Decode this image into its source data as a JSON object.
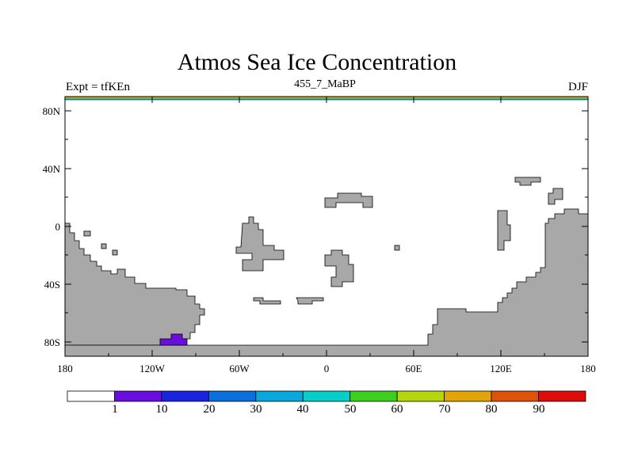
{
  "title": "Atmos Sea Ice Concentration",
  "subtitle_left": "Expt = tfKEn",
  "subtitle_center": "455_7_MaBP",
  "subtitle_right": "DJF",
  "lat_ticks": [
    "80N",
    "40N",
    "0",
    "40S",
    "80S"
  ],
  "lon_ticks": [
    "180",
    "120W",
    "60W",
    "0",
    "60E",
    "120E",
    "180"
  ],
  "colorbar": {
    "labels": [
      "1",
      "10",
      "20",
      "30",
      "40",
      "50",
      "60",
      "70",
      "80",
      "90"
    ],
    "colors": [
      "#ffffff",
      "#6a0ee0",
      "#1a24e0",
      "#0b6fe0",
      "#08a8dc",
      "#06cec8",
      "#3ccf1e",
      "#b4d60a",
      "#e2a406",
      "#e05208",
      "#e00c0c"
    ]
  },
  "land_color": "#a8a8a8",
  "arctic_strip_colors": [
    "#e2a406",
    "#3ccf1e",
    "#0b6fe0"
  ]
}
